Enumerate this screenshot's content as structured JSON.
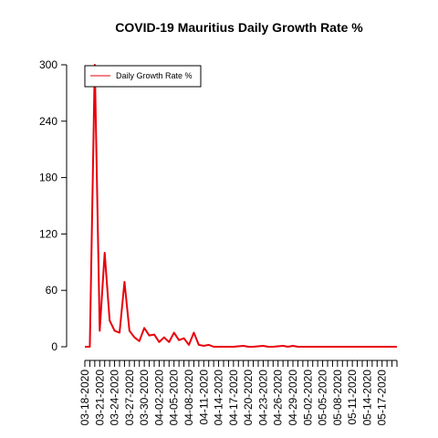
{
  "chart_data": {
    "type": "line",
    "title": "COVID-19 Mauritius Daily Growth Rate %",
    "xlabel": "",
    "ylabel": "",
    "ylim": [
      0,
      300
    ],
    "yticks": [
      0,
      60,
      120,
      180,
      240,
      300
    ],
    "xtick_labels": [
      "03-18-2020",
      "03-21-2020",
      "03-24-2020",
      "03-27-2020",
      "03-30-2020",
      "04-02-2020",
      "04-05-2020",
      "04-08-2020",
      "04-11-2020",
      "04-14-2020",
      "04-17-2020",
      "04-20-2020",
      "04-23-2020",
      "04-26-2020",
      "04-29-2020",
      "05-02-2020",
      "05-05-2020",
      "05-08-2020",
      "05-11-2020",
      "05-14-2020",
      "05-17-2020"
    ],
    "x": [
      "03-18-2020",
      "03-19-2020",
      "03-20-2020",
      "03-21-2020",
      "03-22-2020",
      "03-23-2020",
      "03-24-2020",
      "03-25-2020",
      "03-26-2020",
      "03-27-2020",
      "03-28-2020",
      "03-29-2020",
      "03-30-2020",
      "03-31-2020",
      "04-01-2020",
      "04-02-2020",
      "04-03-2020",
      "04-04-2020",
      "04-05-2020",
      "04-06-2020",
      "04-07-2020",
      "04-08-2020",
      "04-09-2020",
      "04-10-2020",
      "04-11-2020",
      "04-12-2020",
      "04-13-2020",
      "04-14-2020",
      "04-15-2020",
      "04-16-2020",
      "04-17-2020",
      "04-18-2020",
      "04-19-2020",
      "04-20-2020",
      "04-21-2020",
      "04-22-2020",
      "04-23-2020",
      "04-24-2020",
      "04-25-2020",
      "04-26-2020",
      "04-27-2020",
      "04-28-2020",
      "04-29-2020",
      "04-30-2020",
      "05-01-2020",
      "05-02-2020",
      "05-03-2020",
      "05-04-2020",
      "05-05-2020",
      "05-06-2020",
      "05-07-2020",
      "05-08-2020",
      "05-09-2020",
      "05-10-2020",
      "05-11-2020",
      "05-12-2020",
      "05-13-2020",
      "05-14-2020",
      "05-15-2020",
      "05-16-2020",
      "05-17-2020",
      "05-18-2020",
      "05-19-2020",
      "05-20-2020"
    ],
    "series": [
      {
        "name": "Daily Growth Rate %",
        "color": "#e8000b",
        "values": [
          0,
          0,
          300,
          17,
          100,
          28,
          17,
          15,
          69,
          17,
          10,
          6,
          20,
          12,
          13,
          5,
          10,
          5,
          15,
          7,
          9,
          2,
          15,
          2,
          1,
          2,
          0,
          0,
          0,
          0,
          0,
          0.5,
          1,
          0,
          0,
          0.5,
          1,
          0,
          0,
          0.5,
          1,
          0,
          1,
          0,
          0,
          0,
          0,
          0,
          0,
          0,
          0,
          0,
          0,
          0,
          0,
          0,
          0,
          0,
          0,
          0,
          0,
          0,
          0,
          0
        ]
      }
    ],
    "legend": {
      "position": "top-left",
      "entries": [
        "Daily Growth Rate %"
      ]
    },
    "grid": false
  }
}
